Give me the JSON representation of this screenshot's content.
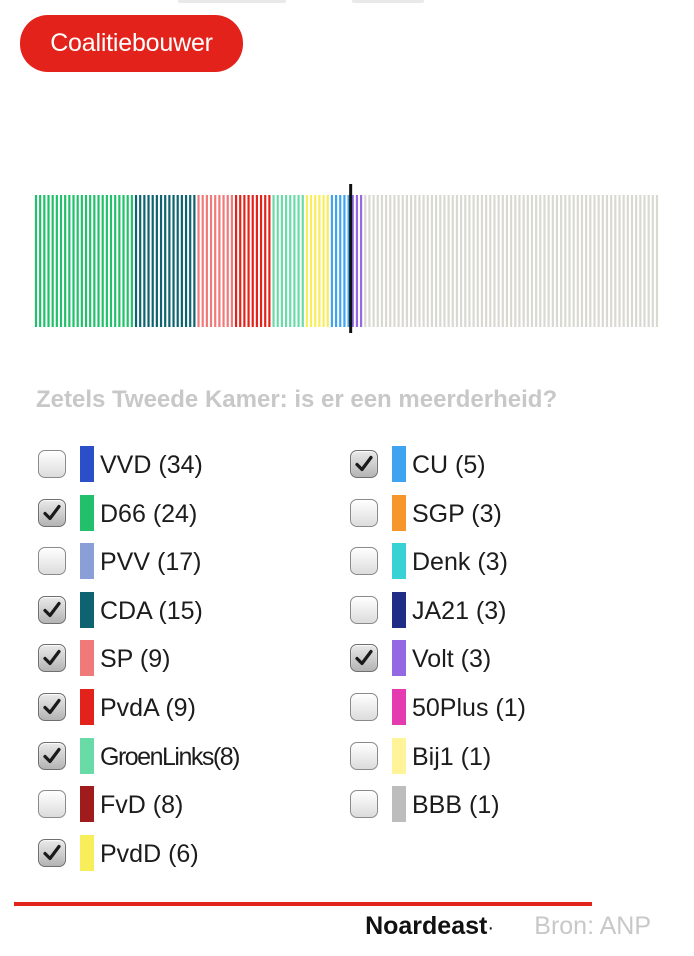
{
  "header": {
    "button_label": "Coalitiebouwer"
  },
  "question": "Zetels Tweede Kamer: is er een meerderheid?",
  "majority_seats": 76,
  "total_seats": 150,
  "empty_seat_color": "#d9d9d2",
  "parties": [
    {
      "name": "VVD",
      "seats": 34,
      "checked": false,
      "color": "#2b4fc8"
    },
    {
      "name": "D66",
      "seats": 24,
      "checked": true,
      "color": "#22c06a"
    },
    {
      "name": "PVV",
      "seats": 17,
      "checked": false,
      "color": "#8a9ed8"
    },
    {
      "name": "CDA",
      "seats": 15,
      "checked": true,
      "color": "#0d6470"
    },
    {
      "name": "SP",
      "seats": 9,
      "checked": true,
      "color": "#f07a7a"
    },
    {
      "name": "PvdA",
      "seats": 9,
      "checked": true,
      "color": "#e3231b"
    },
    {
      "name": "GroenLinks",
      "seats": 8,
      "checked": true,
      "color": "#68dba7"
    },
    {
      "name": "FvD",
      "seats": 8,
      "checked": false,
      "color": "#a01c1c"
    },
    {
      "name": "PvdD",
      "seats": 6,
      "checked": true,
      "color": "#f8ed5a"
    },
    {
      "name": "CU",
      "seats": 5,
      "checked": true,
      "color": "#3ea4f2"
    },
    {
      "name": "SGP",
      "seats": 3,
      "checked": false,
      "color": "#f7962c"
    },
    {
      "name": "Denk",
      "seats": 3,
      "checked": false,
      "color": "#38d2d4"
    },
    {
      "name": "JA21",
      "seats": 3,
      "checked": false,
      "color": "#1f2d86"
    },
    {
      "name": "Volt",
      "seats": 3,
      "checked": true,
      "color": "#9468e2"
    },
    {
      "name": "50Plus",
      "seats": 1,
      "checked": false,
      "color": "#e53bb0"
    },
    {
      "name": "Bij1",
      "seats": 1,
      "checked": false,
      "color": "#fff49a"
    },
    {
      "name": "BBB",
      "seats": 1,
      "checked": false,
      "color": "#bdbdbd"
    }
  ],
  "footer": {
    "brand": "Noardeast",
    "source": "Bron: ANP"
  }
}
